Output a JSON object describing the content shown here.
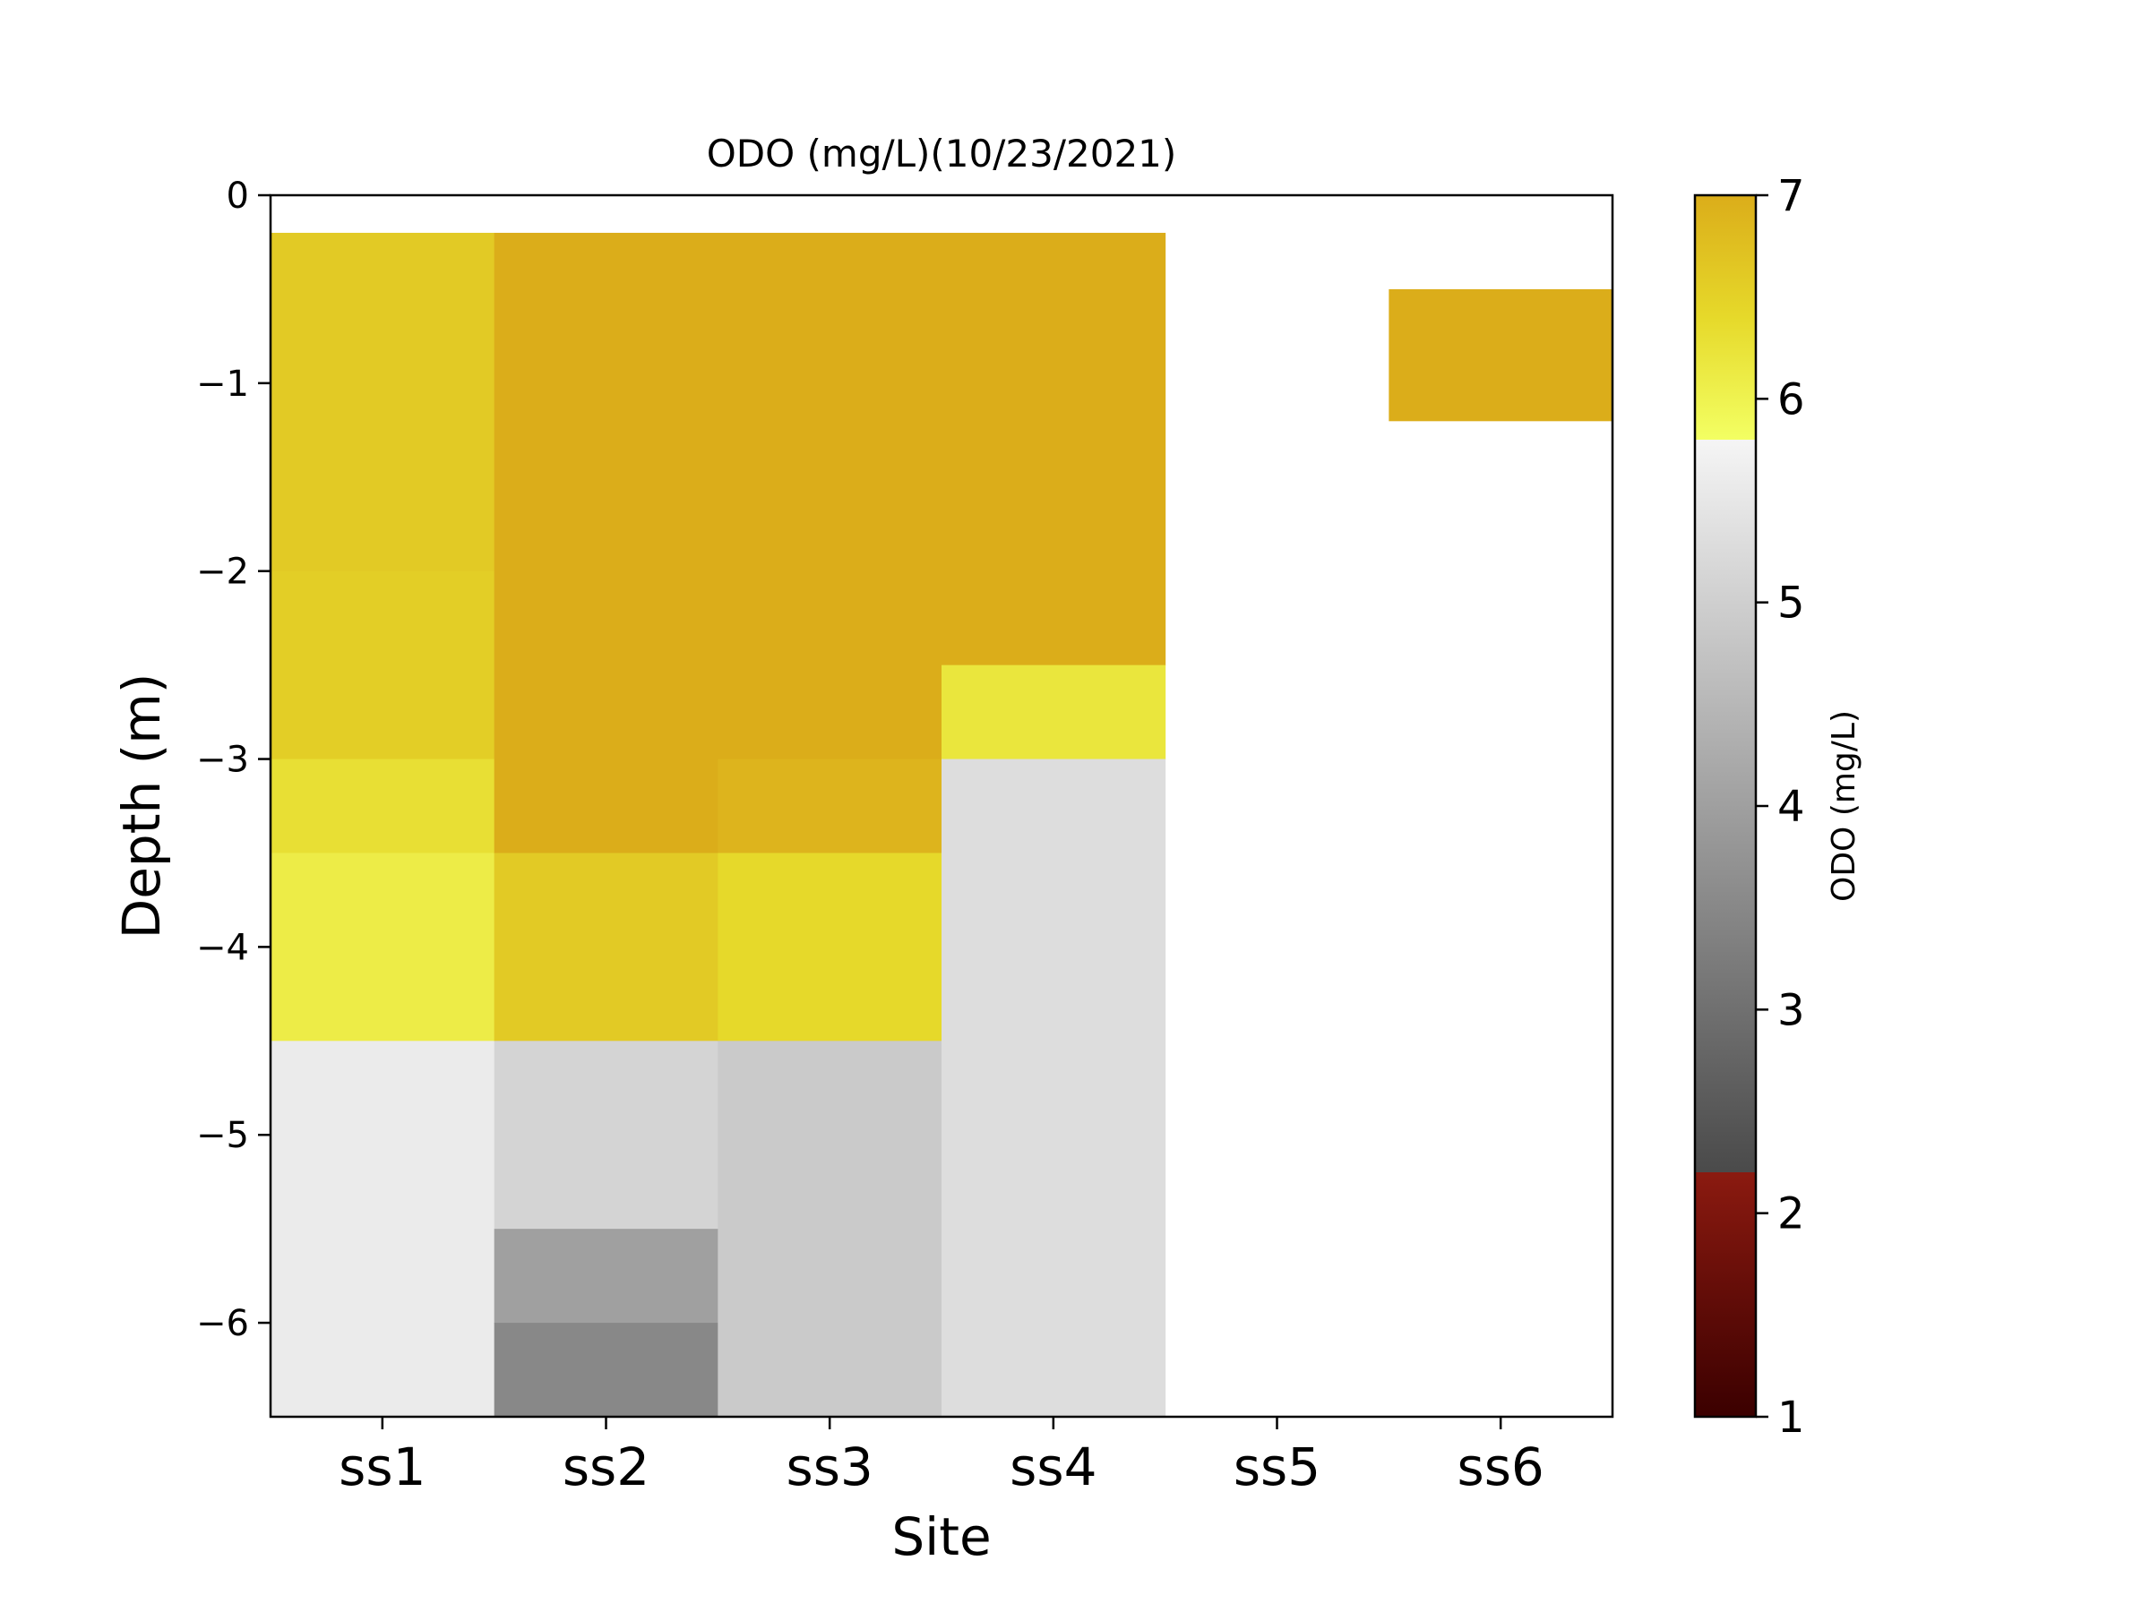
{
  "chart_data": {
    "type": "heatmap",
    "title": "ODO (mg/L)(10/23/2021)",
    "xlabel": "Site",
    "ylabel": "Depth (m)",
    "categories": [
      "ss1",
      "ss2",
      "ss3",
      "ss4",
      "ss5",
      "ss6"
    ],
    "ylim": [
      -6.5,
      0
    ],
    "yticks": [
      0,
      -1,
      -2,
      -3,
      -4,
      -5,
      -6
    ],
    "ytick_labels": [
      "0",
      "−1",
      "−2",
      "−3",
      "−4",
      "−5",
      "−6"
    ],
    "colorbar": {
      "label": "ODO (mg/L)",
      "range": [
        1,
        7
      ],
      "ticks": [
        1,
        2,
        3,
        4,
        5,
        6,
        7
      ],
      "tick_labels": [
        "1",
        "2",
        "3",
        "4",
        "5",
        "6",
        "7"
      ],
      "colors": {
        "min": "#3b0000",
        "red_top": "#8b1a10",
        "gray_low": "#4a4a4a",
        "gray_high": "#f5f5f5",
        "yellow_low": "#f3ff63",
        "mid": "#e6d92a",
        "max": "#dbad1a"
      }
    },
    "cells": [
      {
        "site": "ss1",
        "top": -0.2,
        "bottom": -2.0,
        "value": 6.6
      },
      {
        "site": "ss1",
        "top": -2.0,
        "bottom": -3.0,
        "value": 6.55
      },
      {
        "site": "ss1",
        "top": -3.0,
        "bottom": -3.5,
        "value": 6.3
      },
      {
        "site": "ss1",
        "top": -3.5,
        "bottom": -4.5,
        "value": 6.1
      },
      {
        "site": "ss1",
        "top": -4.5,
        "bottom": -6.5,
        "value": 5.6
      },
      {
        "site": "ss2",
        "top": -0.2,
        "bottom": -3.5,
        "value": 7.0
      },
      {
        "site": "ss2",
        "top": -3.5,
        "bottom": -4.5,
        "value": 6.6
      },
      {
        "site": "ss2",
        "top": -4.5,
        "bottom": -5.5,
        "value": 5.1
      },
      {
        "site": "ss2",
        "top": -5.5,
        "bottom": -6.0,
        "value": 4.0
      },
      {
        "site": "ss2",
        "top": -6.0,
        "bottom": -6.5,
        "value": 3.5
      },
      {
        "site": "ss3",
        "top": -0.2,
        "bottom": -3.0,
        "value": 7.0
      },
      {
        "site": "ss3",
        "top": -3.0,
        "bottom": -3.5,
        "value": 6.9
      },
      {
        "site": "ss3",
        "top": -3.5,
        "bottom": -4.5,
        "value": 6.4
      },
      {
        "site": "ss3",
        "top": -4.5,
        "bottom": -6.5,
        "value": 4.9
      },
      {
        "site": "ss4",
        "top": -0.2,
        "bottom": -2.5,
        "value": 7.0
      },
      {
        "site": "ss4",
        "top": -2.5,
        "bottom": -3.0,
        "value": 6.2
      },
      {
        "site": "ss4",
        "top": -3.0,
        "bottom": -6.5,
        "value": 5.3
      },
      {
        "site": "ss6",
        "top": -0.5,
        "bottom": -1.2,
        "value": 7.0
      }
    ]
  }
}
